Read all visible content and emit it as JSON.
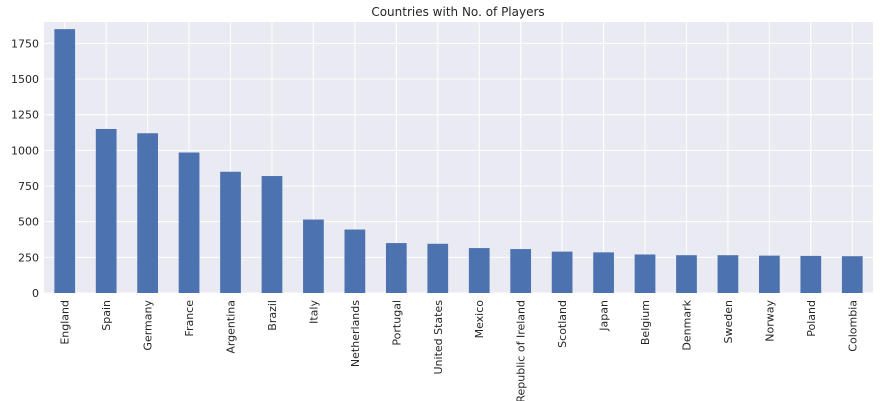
{
  "chart_data": {
    "type": "bar",
    "title": "Countries with No. of Players",
    "xlabel": "",
    "ylabel": "",
    "categories": [
      "England",
      "Spain",
      "Germany",
      "France",
      "Argentina",
      "Brazil",
      "Italy",
      "Netherlands",
      "Portugal",
      "United States",
      "Mexico",
      "Republic of Ireland",
      "Scotland",
      "Japan",
      "Belgium",
      "Denmark",
      "Sweden",
      "Norway",
      "Poland",
      "Colombia"
    ],
    "values": [
      1850,
      1150,
      1120,
      985,
      850,
      820,
      515,
      445,
      350,
      345,
      315,
      308,
      290,
      285,
      270,
      265,
      265,
      262,
      260,
      258
    ],
    "ylim": [
      0,
      1900
    ],
    "yticks": [
      0,
      250,
      500,
      750,
      1000,
      1250,
      1500,
      1750
    ],
    "grid": true,
    "legend": "none",
    "colors": {
      "bar": "#4c72b0",
      "background": "#eaeaf2",
      "grid": "#ffffff",
      "text": "#262626"
    }
  }
}
